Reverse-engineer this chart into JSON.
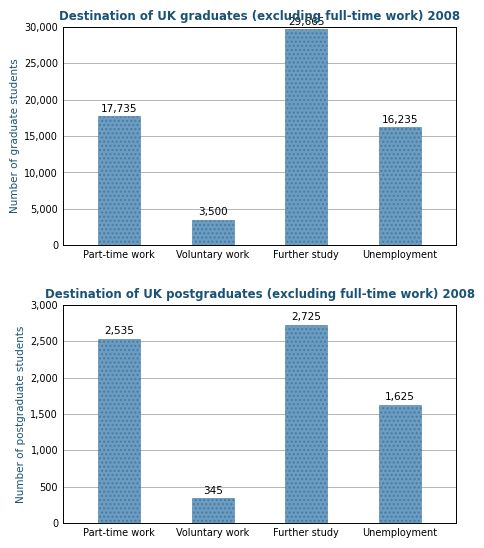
{
  "chart1": {
    "title": "Destination of UK graduates (excluding full-time work) 2008",
    "categories": [
      "Part-time work",
      "Voluntary work",
      "Further study",
      "Unemployment"
    ],
    "values": [
      17735,
      3500,
      29665,
      16235
    ],
    "labels": [
      "17,735",
      "3,500",
      "29,665",
      "16,235"
    ],
    "ylabel": "Number of graduate students",
    "ylim": [
      0,
      30000
    ],
    "yticks": [
      0,
      5000,
      10000,
      15000,
      20000,
      25000,
      30000
    ],
    "ytick_labels": [
      "0",
      "5,000",
      "10,000",
      "15,000",
      "20,000",
      "25,000",
      "30,000"
    ]
  },
  "chart2": {
    "title": "Destination of UK postgraduates (excluding full-time work) 2008",
    "categories": [
      "Part-time work",
      "Voluntary work",
      "Further study",
      "Unemployment"
    ],
    "values": [
      2535,
      345,
      2725,
      1625
    ],
    "labels": [
      "2,535",
      "345",
      "2,725",
      "1,625"
    ],
    "ylabel": "Number of postgraduate students",
    "ylim": [
      0,
      3000
    ],
    "yticks": [
      0,
      500,
      1000,
      1500,
      2000,
      2500,
      3000
    ],
    "ytick_labels": [
      "0",
      "500",
      "1,000",
      "1,500",
      "2,000",
      "2,500",
      "3,000"
    ]
  },
  "bar_color": "#6b9dc2",
  "bar_edge_color": "#4a7aa0",
  "title_color": "#1a5276",
  "ylabel_color": "#1a5276",
  "title_fontsize": 8.5,
  "label_fontsize": 7.5,
  "ylabel_fontsize": 7.5,
  "tick_fontsize": 7.0,
  "bar_width": 0.45
}
